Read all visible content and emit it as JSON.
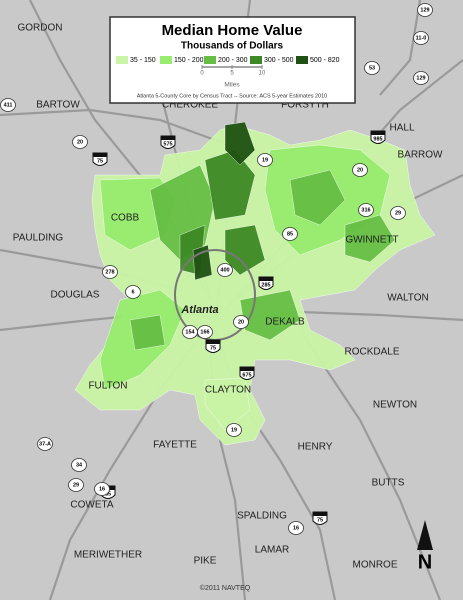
{
  "legend": {
    "title": "Median Home Value",
    "subtitle": "Thousands of Dollars",
    "classes": [
      {
        "label": "35 - 150",
        "color": "#c9f5a6"
      },
      {
        "label": "150 - 200",
        "color": "#98ec6f"
      },
      {
        "label": "200 - 300",
        "color": "#66bf44"
      },
      {
        "label": "300 - 500",
        "color": "#3d8a25"
      },
      {
        "label": "500 - 820",
        "color": "#1f5212"
      }
    ],
    "scale": {
      "ticks": [
        0,
        5,
        10
      ],
      "unit": "Miles"
    },
    "source": "Atlanta 5-County Core by Census Tract -- Source: ACS 5-year Estimates 2010"
  },
  "map": {
    "places": [
      "GORDON",
      "BARTOW",
      "CHEROKEE",
      "FORSYTH",
      "HALL",
      "BARROW",
      "COBB",
      "PAULDING",
      "GWINNETT",
      "WALTON",
      "DOUGLAS",
      "Atlanta",
      "DEKALB",
      "ROCKDALE",
      "FULTON",
      "CLAYTON",
      "NEWTON",
      "FAYETTE",
      "HENRY",
      "BUTTS",
      "COWETA",
      "SPALDING",
      "LAMAR",
      "MERIWETHER",
      "PIKE",
      "MONROE"
    ],
    "highways": [
      "129",
      "53",
      "11-0",
      "129",
      "411",
      "20",
      "575",
      "19",
      "985",
      "20",
      "316",
      "29",
      "85",
      "278",
      "6",
      "400",
      "285",
      "154",
      "166",
      "75",
      "20",
      "675",
      "85",
      "19",
      "37-A",
      "34",
      "29",
      "16",
      "16",
      "75",
      "75"
    ]
  },
  "north": "N",
  "credit": "©2011 NAVTEQ"
}
